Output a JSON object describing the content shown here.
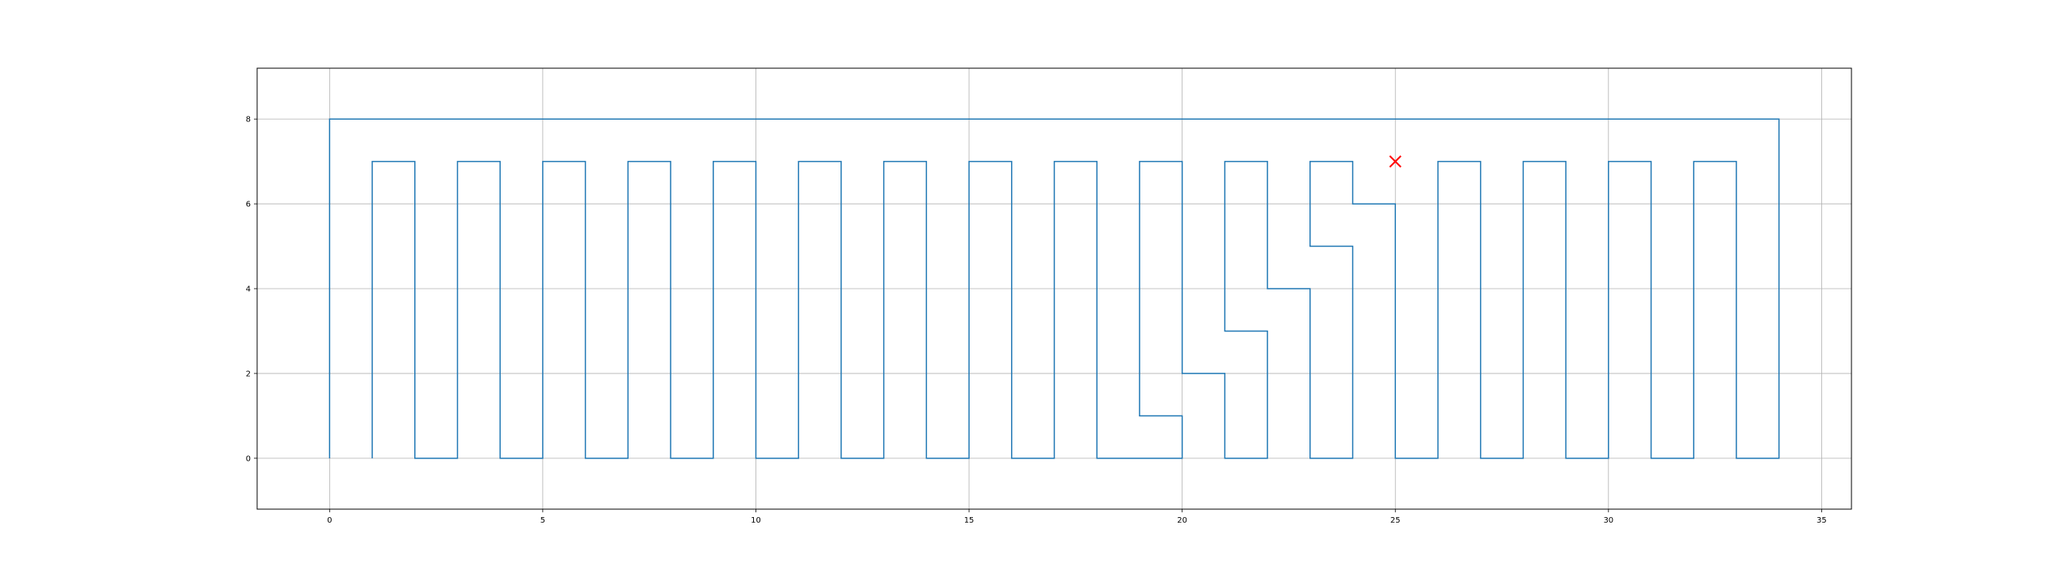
{
  "chart_data": {
    "type": "line",
    "title": "",
    "xlabel": "",
    "ylabel": "",
    "xlim": [
      -1.7,
      35.7
    ],
    "ylim": [
      -1.2,
      9.2
    ],
    "grid": true,
    "x_ticks": [
      0,
      5,
      10,
      15,
      20,
      25,
      30,
      35
    ],
    "x_tick_labels": [
      "0",
      "5",
      "10",
      "15",
      "20",
      "25",
      "30",
      "35"
    ],
    "y_ticks": [
      0,
      2,
      4,
      6,
      8
    ],
    "y_tick_labels": [
      "0",
      "2",
      "4",
      "6",
      "8"
    ],
    "colors": {
      "path": "#1f77b4",
      "marker": "#ff0000",
      "grid": "#b0b0b0"
    },
    "series": [
      {
        "type": "line",
        "points": [
          [
            1,
            0
          ],
          [
            1,
            7
          ],
          [
            2,
            7
          ],
          [
            2,
            0
          ],
          [
            3,
            0
          ],
          [
            3,
            7
          ],
          [
            4,
            7
          ],
          [
            4,
            0
          ],
          [
            5,
            0
          ],
          [
            5,
            7
          ],
          [
            6,
            7
          ],
          [
            6,
            0
          ],
          [
            7,
            0
          ],
          [
            7,
            7
          ],
          [
            8,
            7
          ],
          [
            8,
            0
          ],
          [
            9,
            0
          ],
          [
            9,
            7
          ],
          [
            10,
            7
          ],
          [
            10,
            0
          ],
          [
            11,
            0
          ],
          [
            11,
            7
          ],
          [
            12,
            7
          ],
          [
            12,
            0
          ],
          [
            13,
            0
          ],
          [
            13,
            7
          ],
          [
            14,
            7
          ],
          [
            14,
            0
          ],
          [
            15,
            0
          ],
          [
            15,
            7
          ],
          [
            16,
            7
          ],
          [
            16,
            0
          ],
          [
            17,
            0
          ],
          [
            17,
            7
          ],
          [
            18,
            7
          ],
          [
            18,
            0
          ],
          [
            20,
            0
          ],
          [
            20,
            1
          ],
          [
            19,
            1
          ],
          [
            19,
            7
          ],
          [
            20,
            7
          ],
          [
            20,
            2
          ],
          [
            21,
            2
          ],
          [
            21,
            0
          ],
          [
            22,
            0
          ],
          [
            22,
            3
          ],
          [
            21,
            3
          ],
          [
            21,
            7
          ],
          [
            22,
            7
          ],
          [
            22,
            4
          ],
          [
            23,
            4
          ],
          [
            23,
            0
          ],
          [
            24,
            0
          ],
          [
            24,
            5
          ],
          [
            23,
            5
          ],
          [
            23,
            7
          ],
          [
            24,
            7
          ],
          [
            24,
            6
          ],
          [
            25,
            6
          ],
          [
            25,
            0
          ],
          [
            26,
            0
          ],
          [
            26,
            7
          ],
          [
            27,
            7
          ],
          [
            27,
            0
          ],
          [
            28,
            0
          ],
          [
            28,
            7
          ],
          [
            29,
            7
          ],
          [
            29,
            0
          ],
          [
            30,
            0
          ],
          [
            30,
            7
          ],
          [
            31,
            7
          ],
          [
            31,
            0
          ],
          [
            32,
            0
          ],
          [
            32,
            7
          ],
          [
            33,
            7
          ],
          [
            33,
            0
          ],
          [
            34,
            0
          ],
          [
            34,
            8
          ],
          [
            0,
            8
          ],
          [
            0,
            0
          ]
        ]
      },
      {
        "type": "scatter",
        "marker": "x",
        "points": [
          [
            25,
            7
          ]
        ]
      }
    ]
  }
}
